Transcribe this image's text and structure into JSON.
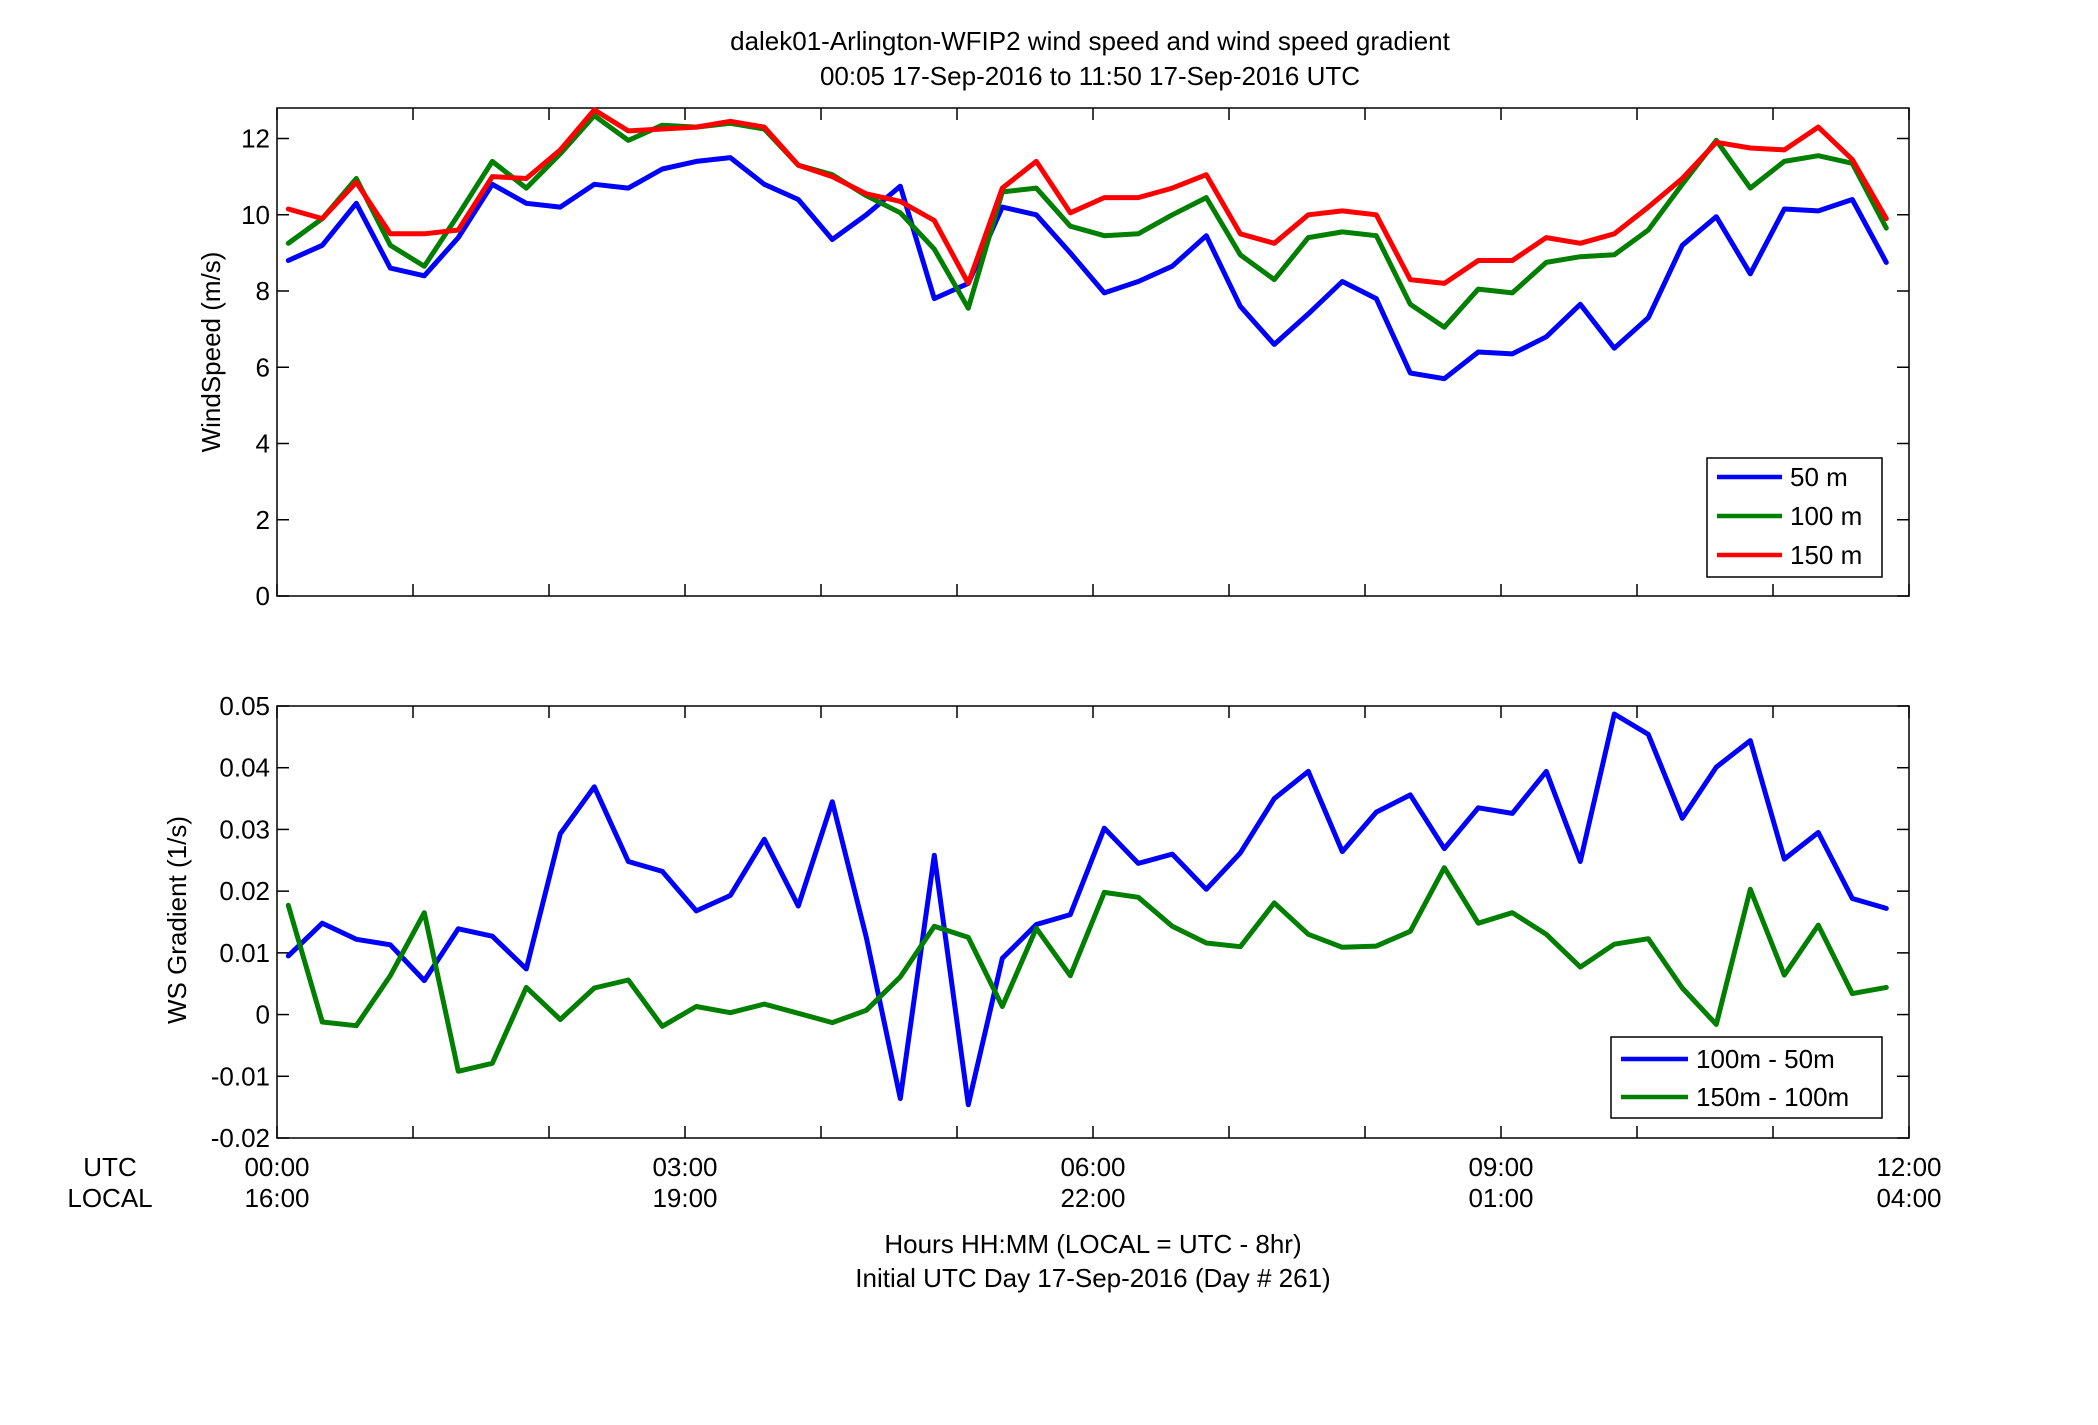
{
  "figure": {
    "title_line1": "dalek01-Arlington-WFIP2  wind speed and wind speed gradient",
    "title_line2": "00:05 17-Sep-2016 to 11:50 17-Sep-2016  UTC",
    "row_label_utc": "UTC",
    "row_label_local": "LOCAL",
    "xlabel_line1": "Hours HH:MM  (LOCAL = UTC - 8hr)",
    "xlabel_line2": "Initial UTC Day 17-Sep-2016 (Day # 261)",
    "x_ticks": [
      {
        "x": 0,
        "utc": "00:00",
        "local": "16:00"
      },
      {
        "x": 3,
        "utc": "03:00",
        "local": "19:00"
      },
      {
        "x": 6,
        "utc": "06:00",
        "local": "22:00"
      },
      {
        "x": 9,
        "utc": "09:00",
        "local": "01:00"
      },
      {
        "x": 12,
        "utc": "12:00",
        "local": "04:00"
      }
    ]
  },
  "chart_data": [
    {
      "type": "line",
      "ylabel": "WindSpeed (m/s)",
      "xlim": [
        0,
        12
      ],
      "ylim": [
        0,
        12.8
      ],
      "yticks": [
        0,
        2,
        4,
        6,
        8,
        10,
        12
      ],
      "ytick_labels": [
        "0",
        "2",
        "4",
        "6",
        "8",
        "10",
        "12"
      ],
      "legend_position": "bottom-right",
      "x": [
        0.083,
        0.333,
        0.583,
        0.833,
        1.083,
        1.333,
        1.583,
        1.833,
        2.083,
        2.333,
        2.583,
        2.833,
        3.083,
        3.333,
        3.583,
        3.833,
        4.083,
        4.333,
        4.583,
        4.833,
        5.083,
        5.333,
        5.583,
        5.833,
        6.083,
        6.333,
        6.583,
        6.833,
        7.083,
        7.333,
        7.583,
        7.833,
        8.083,
        8.333,
        8.583,
        8.833,
        9.083,
        9.333,
        9.583,
        9.833,
        10.083,
        10.333,
        10.583,
        10.833,
        11.083,
        11.333,
        11.583,
        11.833
      ],
      "series": [
        {
          "name": "50 m",
          "color": "#0000ff",
          "values": [
            8.8,
            9.2,
            10.3,
            8.6,
            8.4,
            9.4,
            10.8,
            10.3,
            10.2,
            10.8,
            10.7,
            11.2,
            11.4,
            11.5,
            10.8,
            10.4,
            9.35,
            10.0,
            10.75,
            7.8,
            8.2,
            10.2,
            10.0,
            9.0,
            7.95,
            8.25,
            8.65,
            9.45,
            7.6,
            6.6,
            7.4,
            8.25,
            7.8,
            5.85,
            5.7,
            6.4,
            6.35,
            6.8,
            7.65,
            6.5,
            7.3,
            9.2,
            9.95,
            8.45,
            10.15,
            10.1,
            10.4,
            8.75
          ]
        },
        {
          "name": "100 m",
          "color": "#007f00",
          "values": [
            9.25,
            9.9,
            10.95,
            9.2,
            8.65,
            10.0,
            11.4,
            10.7,
            11.6,
            12.6,
            11.95,
            12.35,
            12.3,
            12.4,
            12.25,
            11.3,
            11.05,
            10.5,
            10.05,
            9.1,
            7.55,
            10.6,
            10.7,
            9.7,
            9.45,
            9.5,
            10.0,
            10.45,
            8.95,
            8.3,
            9.4,
            9.55,
            9.45,
            7.65,
            7.05,
            8.05,
            7.95,
            8.75,
            8.9,
            8.95,
            9.6,
            10.8,
            11.95,
            10.7,
            11.4,
            11.55,
            11.35,
            9.65
          ]
        },
        {
          "name": "150 m",
          "color": "#ff0000",
          "values": [
            10.15,
            9.9,
            10.85,
            9.5,
            9.5,
            9.6,
            11.0,
            10.95,
            11.7,
            12.75,
            12.2,
            12.25,
            12.3,
            12.45,
            12.3,
            11.3,
            11.0,
            10.55,
            10.35,
            9.85,
            8.2,
            10.7,
            11.4,
            10.05,
            10.45,
            10.45,
            10.7,
            11.05,
            9.5,
            9.25,
            10.0,
            10.1,
            10.0,
            8.3,
            8.2,
            8.8,
            8.8,
            9.4,
            9.25,
            9.5,
            10.2,
            10.95,
            11.9,
            11.75,
            11.7,
            12.3,
            11.45,
            9.9
          ]
        }
      ]
    },
    {
      "type": "line",
      "ylabel": "WS Gradient (1/s)",
      "xlim": [
        0,
        12
      ],
      "ylim": [
        -0.02,
        0.05
      ],
      "yticks": [
        -0.02,
        -0.01,
        0,
        0.01,
        0.02,
        0.03,
        0.04,
        0.05
      ],
      "ytick_labels": [
        "-0.02",
        "-0.01",
        "0",
        "0.01",
        "0.02",
        "0.03",
        "0.04",
        "0.05"
      ],
      "legend_position": "bottom-right",
      "x": [
        0.083,
        0.333,
        0.583,
        0.833,
        1.083,
        1.333,
        1.583,
        1.833,
        2.083,
        2.333,
        2.583,
        2.833,
        3.083,
        3.333,
        3.583,
        3.833,
        4.083,
        4.333,
        4.583,
        4.833,
        5.083,
        5.333,
        5.583,
        5.833,
        6.083,
        6.333,
        6.583,
        6.833,
        7.083,
        7.333,
        7.583,
        7.833,
        8.083,
        8.333,
        8.583,
        8.833,
        9.083,
        9.333,
        9.583,
        9.833,
        10.083,
        10.333,
        10.583,
        10.833,
        11.083,
        11.333,
        11.583,
        11.833
      ],
      "series": [
        {
          "name": "100m - 50m",
          "color": "#0000ff",
          "values": [
            0.0095,
            0.0148,
            0.0122,
            0.0113,
            0.0055,
            0.0139,
            0.0127,
            0.0074,
            0.0293,
            0.0369,
            0.0248,
            0.0232,
            0.0168,
            0.0193,
            0.0284,
            0.0176,
            0.0345,
            0.0125,
            -0.0136,
            0.0258,
            -0.0146,
            0.0091,
            0.0146,
            0.0162,
            0.0302,
            0.0245,
            0.026,
            0.0203,
            0.0262,
            0.035,
            0.0394,
            0.0264,
            0.0328,
            0.0356,
            0.0269,
            0.0335,
            0.0326,
            0.0394,
            0.0248,
            0.0487,
            0.0454,
            0.0318,
            0.0401,
            0.0444,
            0.0252,
            0.0295,
            0.0188,
            0.0172
          ]
        },
        {
          "name": "150m - 100m",
          "color": "#007f00",
          "values": [
            0.0177,
            -0.0012,
            -0.0018,
            0.0063,
            0.0165,
            -0.0092,
            -0.0079,
            0.0044,
            -0.0008,
            0.0043,
            0.0056,
            -0.0019,
            0.0013,
            0.0003,
            0.0017,
            0.0002,
            -0.0013,
            0.0007,
            0.0061,
            0.0143,
            0.0125,
            0.0013,
            0.014,
            0.0063,
            0.0198,
            0.019,
            0.0143,
            0.0116,
            0.011,
            0.0181,
            0.013,
            0.0109,
            0.0111,
            0.0135,
            0.0238,
            0.0148,
            0.0165,
            0.013,
            0.0077,
            0.0114,
            0.0123,
            0.0043,
            -0.0016,
            0.0203,
            0.0064,
            0.0145,
            0.0034,
            0.0044
          ]
        }
      ]
    }
  ]
}
